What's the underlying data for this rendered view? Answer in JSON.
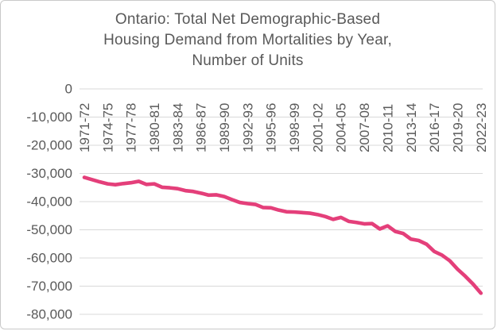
{
  "window": {
    "background_color": "#ffffff",
    "border_color": "#c9c9c9"
  },
  "chart_data": {
    "type": "line",
    "title": "Ontario: Total Net Demographic-Based\nHousing Demand from Mortalities by Year,\nNumber of Units",
    "xlabel": "",
    "ylabel": "",
    "ylim": [
      -80000,
      0
    ],
    "y_tick_step": 10000,
    "grid": "horizontal",
    "legend": "none",
    "line_color": "#e43f7a",
    "grid_color": "#d9d9d9",
    "text_color": "#595959",
    "y_tick_labels": [
      "0",
      "-10,000",
      "-20,000",
      "-30,000",
      "-40,000",
      "-50,000",
      "-60,000",
      "-70,000",
      "-80,000"
    ],
    "x_tick_labels": [
      "1971-72",
      "1974-75",
      "1977-78",
      "1980-81",
      "1983-84",
      "1986-87",
      "1989-90",
      "1992-93",
      "1995-96",
      "1998-99",
      "2001-02",
      "2004-05",
      "2007-08",
      "2010-11",
      "2013-14",
      "2016-17",
      "2019-20",
      "2022-23"
    ],
    "x_tick_every": 3,
    "categories": [
      "1971-72",
      "1972-73",
      "1973-74",
      "1974-75",
      "1975-76",
      "1976-77",
      "1977-78",
      "1978-79",
      "1979-80",
      "1980-81",
      "1981-82",
      "1982-83",
      "1983-84",
      "1984-85",
      "1985-86",
      "1986-87",
      "1987-88",
      "1988-89",
      "1989-90",
      "1990-91",
      "1991-92",
      "1992-93",
      "1993-94",
      "1994-95",
      "1995-96",
      "1996-97",
      "1997-98",
      "1998-99",
      "1999-00",
      "2000-01",
      "2001-02",
      "2002-03",
      "2003-04",
      "2004-05",
      "2005-06",
      "2006-07",
      "2007-08",
      "2008-09",
      "2009-10",
      "2010-11",
      "2011-12",
      "2012-13",
      "2013-14",
      "2014-15",
      "2015-16",
      "2016-17",
      "2017-18",
      "2018-19",
      "2019-20",
      "2020-21",
      "2021-22",
      "2022-23"
    ],
    "values": [
      -31400,
      -32200,
      -33000,
      -33700,
      -34000,
      -33600,
      -33300,
      -32800,
      -33900,
      -33700,
      -34900,
      -35100,
      -35400,
      -36100,
      -36400,
      -37000,
      -37700,
      -37600,
      -38200,
      -39300,
      -40300,
      -40700,
      -41000,
      -42100,
      -42200,
      -43000,
      -43600,
      -43700,
      -43900,
      -44100,
      -44600,
      -45300,
      -46300,
      -45600,
      -47000,
      -47400,
      -47900,
      -47800,
      -49700,
      -48600,
      -50600,
      -51300,
      -53300,
      -53800,
      -55100,
      -57700,
      -59000,
      -61000,
      -64000,
      -66500,
      -69300,
      -72500
    ]
  }
}
